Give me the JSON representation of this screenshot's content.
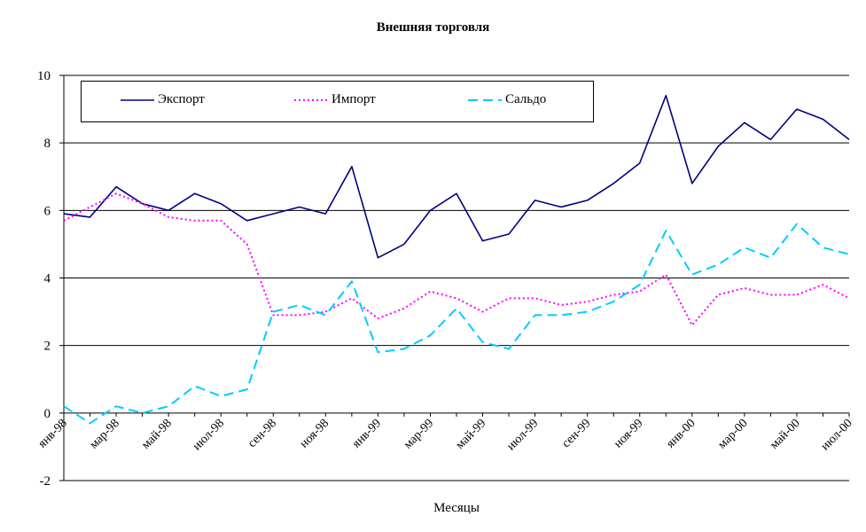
{
  "chart_data": {
    "type": "line",
    "title": "Внешняя торговля",
    "xlabel": "Месяцы",
    "ylabel": "",
    "ylim": [
      -2,
      10
    ],
    "yticks": [
      "-2",
      "0",
      "2",
      "4",
      "6",
      "8",
      "10"
    ],
    "grid": "horizontal",
    "legend_position": "top",
    "tick_labels": [
      "янв-98",
      "мар-98",
      "май-98",
      "июл-98",
      "сен-98",
      "ноя-98",
      "янв-99",
      "мар-99",
      "май-99",
      "июл-99",
      "сен-99",
      "ноя-99",
      "янв-00",
      "мар-00",
      "май-00",
      "июл-00"
    ],
    "categories": [
      "янв-98",
      "фев-98",
      "мар-98",
      "апр-98",
      "май-98",
      "июн-98",
      "июл-98",
      "авг-98",
      "сен-98",
      "окт-98",
      "ноя-98",
      "дек-98",
      "янв-99",
      "фев-99",
      "мар-99",
      "апр-99",
      "май-99",
      "июн-99",
      "июл-99",
      "авг-99",
      "сен-99",
      "окт-99",
      "ноя-99",
      "дек-99",
      "янв-00",
      "фев-00",
      "мар-00",
      "апр-00",
      "май-00",
      "июн-00",
      "июл-00"
    ],
    "series": [
      {
        "name": "Экспорт",
        "color": "#000080",
        "style": "solid",
        "values": [
          5.9,
          5.8,
          6.7,
          6.2,
          6.0,
          6.5,
          6.2,
          5.7,
          5.9,
          6.1,
          5.9,
          7.3,
          4.6,
          5.0,
          6.0,
          6.5,
          5.1,
          5.3,
          6.3,
          6.1,
          6.3,
          6.8,
          7.4,
          9.4,
          6.8,
          7.9,
          8.6,
          8.1,
          9.0,
          8.7,
          8.1
        ]
      },
      {
        "name": "Импорт",
        "color": "#ff00ff",
        "style": "dotted",
        "values": [
          5.7,
          6.1,
          6.5,
          6.2,
          5.8,
          5.7,
          5.7,
          5.0,
          2.9,
          2.9,
          3.0,
          3.4,
          2.8,
          3.1,
          3.6,
          3.4,
          3.0,
          3.4,
          3.4,
          3.2,
          3.3,
          3.5,
          3.6,
          4.1,
          2.6,
          3.5,
          3.7,
          3.5,
          3.5,
          3.8,
          3.4
        ]
      },
      {
        "name": "Сальдо",
        "color": "#00ccff",
        "style": "dashed",
        "values": [
          0.2,
          -0.3,
          0.2,
          0.0,
          0.2,
          0.8,
          0.5,
          0.7,
          3.0,
          3.2,
          2.9,
          3.9,
          1.8,
          1.9,
          2.3,
          3.1,
          2.1,
          1.9,
          2.9,
          2.9,
          3.0,
          3.3,
          3.8,
          5.4,
          4.1,
          4.4,
          4.9,
          4.6,
          5.6,
          4.9,
          4.7
        ]
      }
    ]
  }
}
